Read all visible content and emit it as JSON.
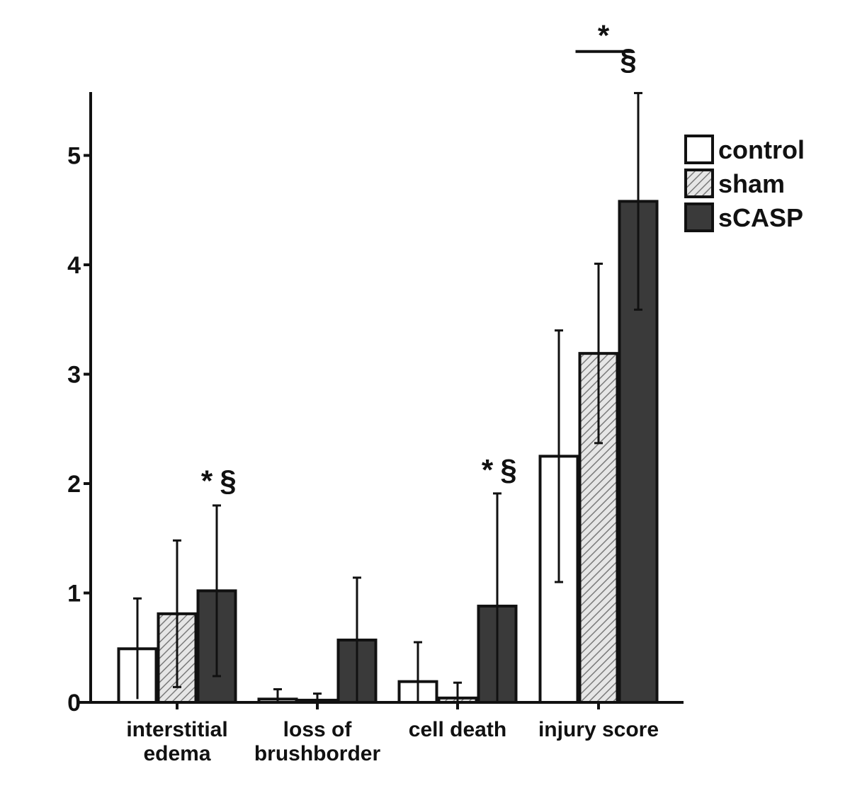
{
  "chart_data": {
    "type": "bar",
    "categories": [
      [
        "interstitial",
        "edema"
      ],
      [
        "loss of",
        "brushborder"
      ],
      [
        "cell death"
      ],
      [
        "injury score"
      ]
    ],
    "series": [
      {
        "name": "control",
        "color": "#ffffff",
        "pattern": "none",
        "values": [
          0.49,
          0.03,
          0.19,
          2.25
        ],
        "error_upper": [
          0.95,
          0.12,
          0.55,
          3.4
        ]
      },
      {
        "name": "sham",
        "color": "#d0d0d0",
        "pattern": "diagonal-hatch",
        "values": [
          0.81,
          0.02,
          0.04,
          3.19
        ],
        "error_upper": [
          1.48,
          0.08,
          0.18,
          4.01
        ]
      },
      {
        "name": "sCASP",
        "color": "#3a3a3a",
        "pattern": "none",
        "values": [
          1.02,
          0.57,
          0.88,
          4.58
        ],
        "error_upper": [
          1.8,
          1.14,
          1.91,
          5.57
        ]
      }
    ],
    "y_ticks": [
      "0",
      "1",
      "2",
      "3",
      "4",
      "5"
    ],
    "ylim": [
      0,
      5.55
    ],
    "xlabel": "",
    "ylabel": "",
    "legend": {
      "position": "top-right"
    },
    "grid": false,
    "annotations": [
      {
        "text": "*",
        "category_index": 0,
        "series_index": 2,
        "y": 2.05
      },
      {
        "text": "§",
        "category_index": 0,
        "series_index": 2,
        "y": 2.05
      },
      {
        "text": "*",
        "category_index": 2,
        "series_index": 2,
        "y": 2.15
      },
      {
        "text": "§",
        "category_index": 2,
        "series_index": 2,
        "y": 2.15
      },
      {
        "text": "*",
        "category_index": 3,
        "series_index": 1,
        "y": 6.17,
        "line_from_series": 0,
        "line_to_series": 1
      },
      {
        "text": "§",
        "category_index": 3,
        "series_index": 2,
        "y": 5.9
      }
    ]
  }
}
